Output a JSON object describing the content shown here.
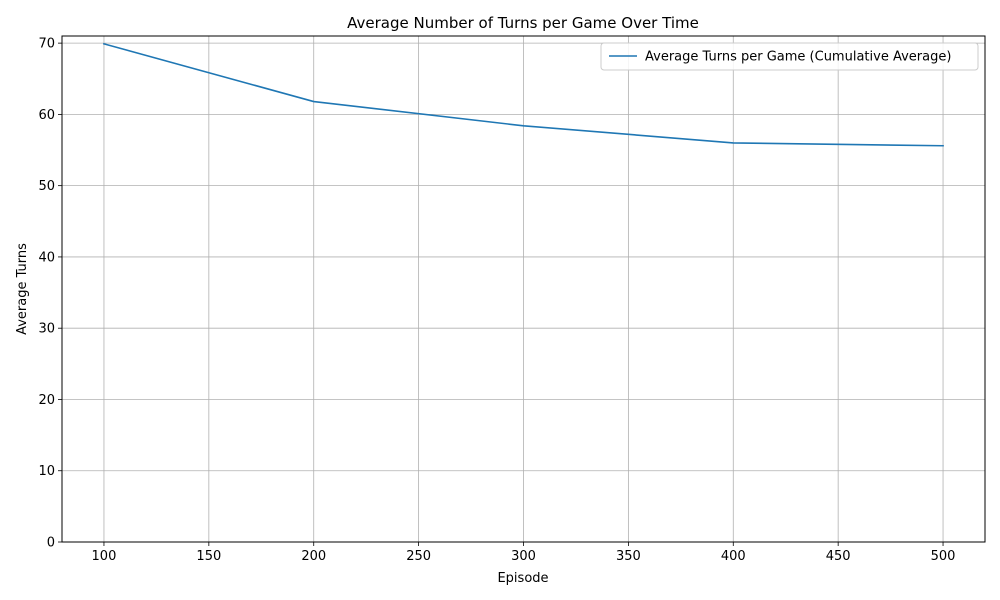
{
  "chart_data": {
    "type": "line",
    "title": "Average Number of Turns per Game Over Time",
    "xlabel": "Episode",
    "ylabel": "Average Turns",
    "xlim": [
      80,
      520
    ],
    "ylim": [
      0,
      71
    ],
    "x_ticks": [
      100,
      150,
      200,
      250,
      300,
      350,
      400,
      450,
      500
    ],
    "y_ticks": [
      0,
      10,
      20,
      30,
      40,
      50,
      60,
      70
    ],
    "grid": true,
    "legend_position": "top-right",
    "series": [
      {
        "name": "Average Turns per Game (Cumulative Average)",
        "color": "#1f77b4",
        "x": [
          100,
          200,
          300,
          400,
          500
        ],
        "y": [
          69.9,
          61.8,
          58.4,
          56.0,
          55.6
        ]
      }
    ]
  }
}
